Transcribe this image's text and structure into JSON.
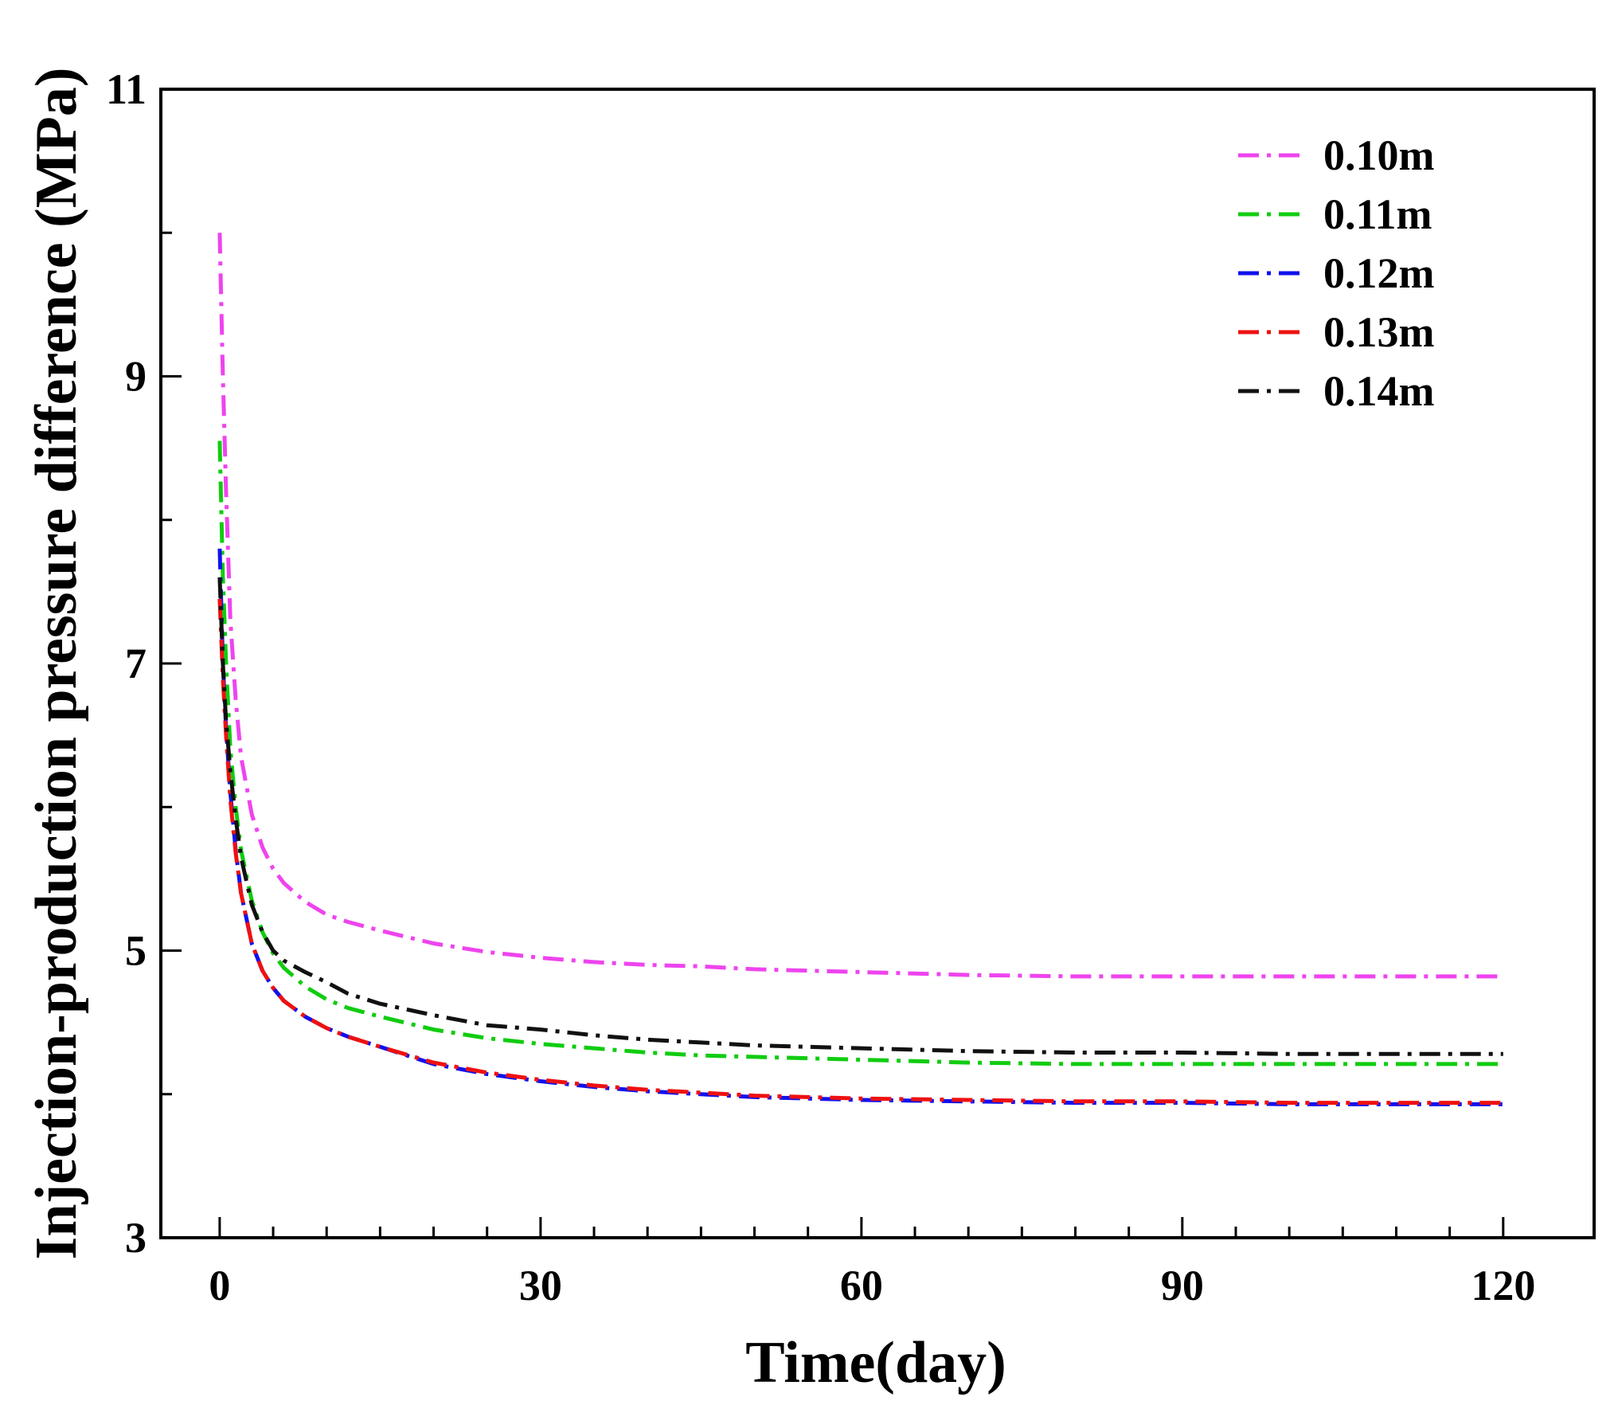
{
  "chart_data": {
    "type": "line",
    "title": "",
    "xlabel": "Time(day)",
    "ylabel": "Injection-production pressure difference (MPa)",
    "xlim": [
      -5.5,
      128.5
    ],
    "ylim": [
      3,
      11
    ],
    "x_ticks": [
      0,
      30,
      60,
      90,
      120
    ],
    "x_tick_labels": [
      "0",
      "30",
      "60",
      "90",
      "120"
    ],
    "y_ticks": [
      3,
      5,
      7,
      9,
      11
    ],
    "y_tick_labels": [
      "3",
      "5",
      "7",
      "9",
      "11"
    ],
    "legend_position": "top-right",
    "line_style": "dash-dot",
    "x": [
      0,
      0.3,
      0.6,
      1,
      1.5,
      2,
      3,
      4,
      5,
      6,
      8,
      10,
      12,
      15,
      20,
      25,
      30,
      35,
      40,
      45,
      50,
      60,
      70,
      80,
      90,
      100,
      110,
      120
    ],
    "series": [
      {
        "name": "0.10m",
        "color": "#ee44ee",
        "values": [
          10.0,
          9.0,
          8.2,
          7.3,
          6.75,
          6.35,
          5.95,
          5.72,
          5.57,
          5.47,
          5.34,
          5.25,
          5.2,
          5.14,
          5.05,
          4.99,
          4.95,
          4.92,
          4.9,
          4.89,
          4.87,
          4.85,
          4.83,
          4.82,
          4.82,
          4.82,
          4.82,
          4.82
        ]
      },
      {
        "name": "0.11m",
        "color": "#11cc11",
        "values": [
          8.55,
          7.6,
          7.0,
          6.4,
          6.0,
          5.7,
          5.35,
          5.13,
          4.98,
          4.88,
          4.75,
          4.66,
          4.6,
          4.54,
          4.45,
          4.39,
          4.35,
          4.32,
          4.29,
          4.27,
          4.26,
          4.24,
          4.22,
          4.21,
          4.21,
          4.21,
          4.21,
          4.21
        ]
      },
      {
        "name": "0.12m",
        "color": "#1111ee",
        "values": [
          7.8,
          7.0,
          6.55,
          6.1,
          5.7,
          5.4,
          5.05,
          4.86,
          4.74,
          4.65,
          4.54,
          4.46,
          4.4,
          4.33,
          4.21,
          4.14,
          4.09,
          4.05,
          4.02,
          4.0,
          3.98,
          3.96,
          3.95,
          3.94,
          3.94,
          3.93,
          3.93,
          3.93
        ]
      },
      {
        "name": "0.13m",
        "color": "#ee1111",
        "values": [
          7.45,
          6.9,
          6.5,
          6.05,
          5.68,
          5.4,
          5.05,
          4.86,
          4.74,
          4.65,
          4.54,
          4.46,
          4.4,
          4.33,
          4.22,
          4.15,
          4.1,
          4.06,
          4.03,
          4.01,
          3.99,
          3.97,
          3.96,
          3.95,
          3.95,
          3.94,
          3.94,
          3.94
        ]
      },
      {
        "name": "0.14m",
        "color": "#111111",
        "values": [
          7.6,
          7.0,
          6.6,
          6.25,
          5.92,
          5.65,
          5.32,
          5.13,
          5.0,
          4.93,
          4.85,
          4.78,
          4.7,
          4.63,
          4.55,
          4.48,
          4.45,
          4.41,
          4.38,
          4.36,
          4.34,
          4.32,
          4.3,
          4.29,
          4.29,
          4.28,
          4.28,
          4.28
        ]
      }
    ]
  }
}
